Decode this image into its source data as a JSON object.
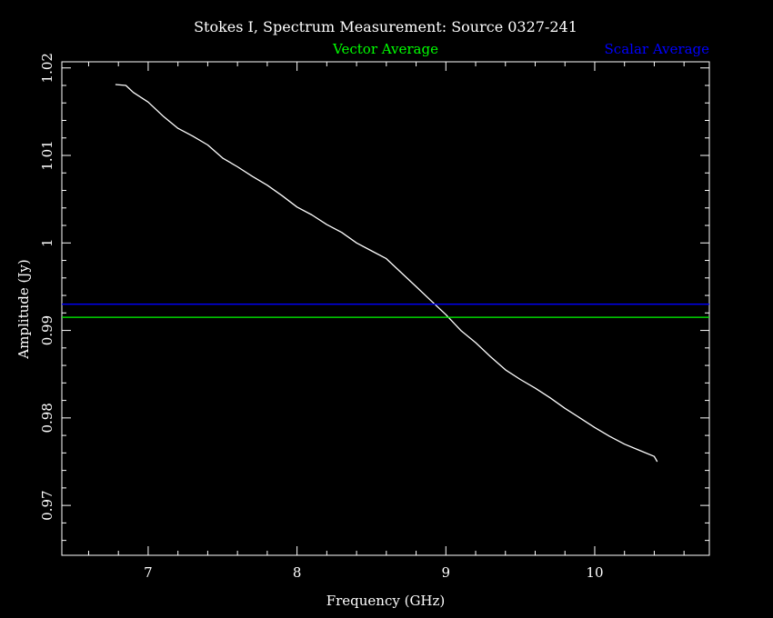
{
  "chart_data": {
    "type": "line",
    "title": "Stokes I, Spectrum Measurement: Source 0327-241",
    "xlabel": "Frequency (GHz)",
    "ylabel": "Amplitude (Jy)",
    "xlim": [
      6.42,
      10.77
    ],
    "ylim": [
      0.9643,
      1.0207
    ],
    "x_ticks": [
      7,
      8,
      9,
      10
    ],
    "y_ticks": [
      0.97,
      0.98,
      0.99,
      1,
      1.01,
      1.02
    ],
    "x_tick_labels": [
      "7",
      "8",
      "9",
      "10"
    ],
    "y_tick_labels": [
      "0.97",
      "0.98",
      "0.99",
      "1",
      "1.01",
      "1.02"
    ],
    "background": "#000000",
    "axis_color": "#ffffff",
    "series": [
      {
        "name": "Stokes I",
        "color": "#ffffff",
        "x": [
          6.78,
          6.85,
          6.9,
          7.0,
          7.1,
          7.2,
          7.3,
          7.4,
          7.5,
          7.6,
          7.7,
          7.8,
          7.9,
          8.0,
          8.1,
          8.2,
          8.3,
          8.4,
          8.5,
          8.6,
          8.7,
          8.8,
          8.9,
          9.0,
          9.1,
          9.2,
          9.3,
          9.4,
          9.5,
          9.6,
          9.7,
          9.8,
          9.9,
          10.0,
          10.1,
          10.2,
          10.3,
          10.4,
          10.42
        ],
        "y": [
          1.0181,
          1.018,
          1.0172,
          1.0161,
          1.0145,
          1.0131,
          1.0122,
          1.0112,
          1.0097,
          1.0087,
          1.0076,
          1.0066,
          1.0054,
          1.0041,
          1.0032,
          1.0021,
          1.0012,
          1.0,
          0.9991,
          0.9982,
          0.9966,
          0.995,
          0.9934,
          0.9918,
          0.99,
          0.9886,
          0.987,
          0.9855,
          0.9844,
          0.9834,
          0.9823,
          0.9811,
          0.98,
          0.9789,
          0.9779,
          0.977,
          0.9763,
          0.9756,
          0.975
        ]
      },
      {
        "name": "Vector Average",
        "color": "#00ff00",
        "x": [
          6.42,
          10.77
        ],
        "y": [
          0.9915,
          0.9915
        ]
      },
      {
        "name": "Scalar Average",
        "color": "#0000ff",
        "x": [
          6.42,
          10.77
        ],
        "y": [
          0.993,
          0.993
        ]
      }
    ],
    "legend": [
      {
        "label": "Vector Average",
        "color": "#00ff00"
      },
      {
        "label": "Scalar Average",
        "color": "#0000ff"
      }
    ],
    "legend_placement": "top",
    "grid": false
  }
}
